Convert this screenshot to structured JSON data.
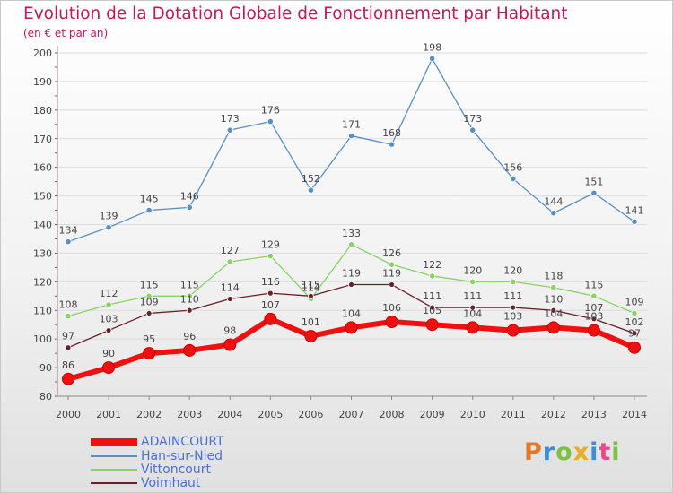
{
  "header": {
    "title": "Evolution de la Dotation Globale de Fonctionnement par Habitant",
    "subtitle": "(en € et par an)"
  },
  "logo": {
    "text": "Proxiti"
  },
  "colors": {
    "title": "#c2185b",
    "axis": "#8a8a8a",
    "grid": "#dcdcdc",
    "legend_text": "#4a6fd6",
    "ADAINCOURT": "#ee1111",
    "Han-sur-Nied": "#5a8fc4",
    "Vittoncourt": "#88d266",
    "Voimhaut": "#6a1f2a"
  },
  "chart_data": {
    "type": "line",
    "title": "Evolution de la Dotation Globale de Fonctionnement par Habitant",
    "subtitle": "(en € et par an)",
    "x": [
      "2000",
      "2001",
      "2002",
      "2003",
      "2004",
      "2005",
      "2006",
      "2007",
      "2008",
      "2009",
      "2010",
      "2011",
      "2012",
      "2013",
      "2014"
    ],
    "ylim": [
      80,
      200
    ],
    "yticks": [
      80,
      90,
      100,
      110,
      120,
      130,
      140,
      150,
      160,
      170,
      180,
      190,
      200
    ],
    "grid": "horizontal",
    "legend_position": "bottom-left",
    "series": [
      {
        "name": "ADAINCOURT",
        "values": [
          86,
          90,
          95,
          96,
          98,
          107,
          101,
          104,
          106,
          105,
          104,
          103,
          104,
          103,
          97
        ]
      },
      {
        "name": "Han-sur-Nied",
        "values": [
          134,
          139,
          145,
          146,
          173,
          176,
          152,
          171,
          168,
          198,
          173,
          156,
          144,
          151,
          141
        ]
      },
      {
        "name": "Vittoncourt",
        "values": [
          108,
          112,
          115,
          115,
          127,
          129,
          114,
          133,
          126,
          122,
          120,
          120,
          118,
          115,
          109
        ]
      },
      {
        "name": "Voimhaut",
        "values": [
          97,
          103,
          109,
          110,
          114,
          116,
          115,
          119,
          119,
          111,
          111,
          111,
          110,
          107,
          102
        ]
      }
    ]
  }
}
